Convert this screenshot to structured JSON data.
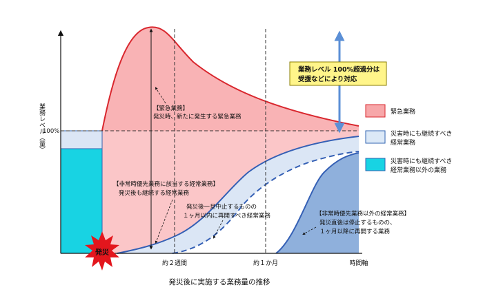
{
  "axes": {
    "y_label": "業務レベル（量）",
    "y_tick_100": "100%",
    "x_ticks": [
      "約２週間",
      "約１か月",
      "時間軸"
    ],
    "caption": "発災後に実施する業務量の推移"
  },
  "disaster_badge": "発災",
  "callout": {
    "line1": "業務レベル 100%超過分は",
    "line2": "受援などにより対応"
  },
  "annotations": {
    "emergency": [
      "【緊急業務】",
      "発災時、新たに発生する緊急業務"
    ],
    "priority_regular": [
      "【非常時優先業務に該当する経常業務】",
      "発災後も継続する経常業務"
    ],
    "resume_within_month": [
      "発災後一旦中止するものの",
      "１ヶ月以内に再開すべき経常業務"
    ],
    "non_priority": [
      "【非常時優先業務以外の経常業務】",
      "発災直後は停止するものの、",
      "１ヶ月以降に再開する業務"
    ]
  },
  "legend": [
    {
      "lines": [
        "緊急業務"
      ],
      "color": "#f7a7a9",
      "border": "#d9272e"
    },
    {
      "lines": [
        "災害時にも継続すべき",
        "経常業務"
      ],
      "color": "#dce9f7",
      "border": "#2f63b0"
    },
    {
      "lines": [
        "災害時にも継続すべき",
        "経常業務以外の業務"
      ],
      "color": "#18d3e3",
      "border": "#2f63b0"
    }
  ],
  "colors": {
    "emergency_fill": "#f9b3b5",
    "emergency_line": "#d9272e",
    "regular_fill": "#dbe6f5",
    "regular_line": "#3560b5",
    "non_priority_fill": "#8fb0dc",
    "cyan_block": "#18d3e3",
    "arrow_blue": "#5b8fd6",
    "callout_fill": "#fff58a",
    "badge_red": "#e3161d",
    "badge_text": "#ffffff"
  },
  "icons": {
    "double_arrow": "double-arrow-icon",
    "burst": "burst-icon"
  }
}
